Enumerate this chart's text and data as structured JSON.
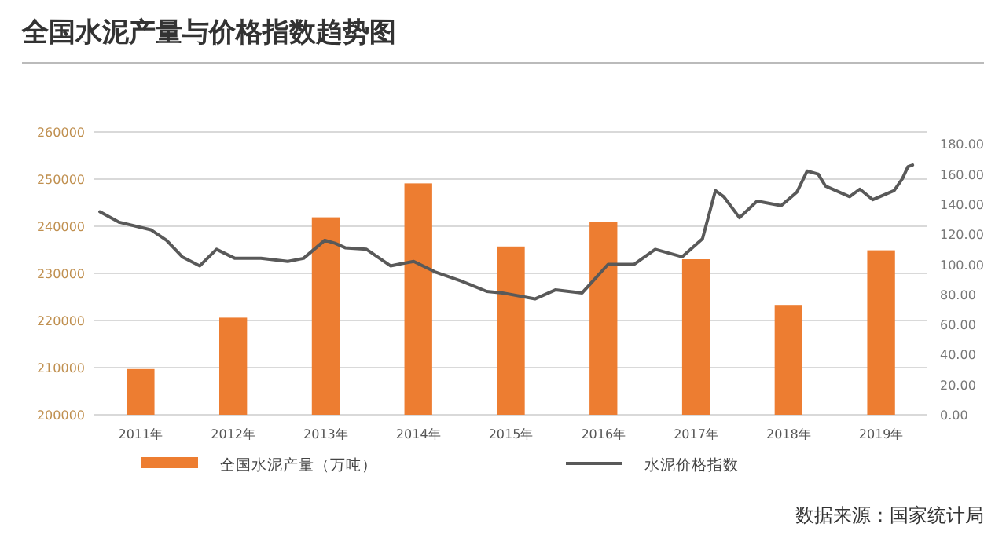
{
  "chart_data": {
    "type": "bar",
    "title": "全国水泥产量与价格指数趋势图",
    "x": [
      2011,
      2012,
      2013,
      2014,
      2015,
      2016,
      2017,
      2018,
      2019
    ],
    "xlim": [
      2010.5,
      2019.5
    ],
    "xticks": [
      {
        "value": 2011,
        "label": "2011年"
      },
      {
        "value": 2012,
        "label": "2012年"
      },
      {
        "value": 2013,
        "label": "2013年"
      },
      {
        "value": 2014,
        "label": "2014年"
      },
      {
        "value": 2015,
        "label": "2015年"
      },
      {
        "value": 2016,
        "label": "2016年"
      },
      {
        "value": 2017,
        "label": "2017年"
      },
      {
        "value": 2018,
        "label": "2018年"
      },
      {
        "value": 2019,
        "label": "2019年"
      }
    ],
    "ylim": [
      200000,
      260000
    ],
    "yticks": [
      200000,
      210000,
      220000,
      230000,
      240000,
      250000,
      260000
    ],
    "y2lim": [
      0,
      188
    ],
    "y2ticks": [
      {
        "value": 0,
        "label": "0.00"
      },
      {
        "value": 20,
        "label": "20.00"
      },
      {
        "value": 40,
        "label": "40.00"
      },
      {
        "value": 60,
        "label": "60.00"
      },
      {
        "value": 80,
        "label": "80.00"
      },
      {
        "value": 100,
        "label": "100.00"
      },
      {
        "value": 120,
        "label": "120.00"
      },
      {
        "value": 140,
        "label": "140.00"
      },
      {
        "value": 160,
        "label": "160.00"
      },
      {
        "value": 180,
        "label": "180.00"
      }
    ],
    "grid": "y",
    "legend": "bottom",
    "series": [
      {
        "name": "全国水泥产量（万吨）",
        "color": "#ed7d31",
        "values": [
          209700,
          220600,
          241900,
          249100,
          235700,
          240900,
          233000,
          223300,
          234900
        ]
      },
      {
        "name": "水泥价格指数",
        "type": "line",
        "axis": "y2",
        "color": "#595959",
        "x": [
          2010.56,
          2010.77,
          2011.11,
          2011.28,
          2011.45,
          2011.64,
          2011.82,
          2012.02,
          2012.3,
          2012.59,
          2012.76,
          2012.99,
          2013.1,
          2013.21,
          2013.44,
          2013.7,
          2013.95,
          2014.18,
          2014.46,
          2014.74,
          2014.91,
          2015.26,
          2015.48,
          2015.77,
          2016.05,
          2016.33,
          2016.56,
          2016.85,
          2017.07,
          2017.21,
          2017.3,
          2017.47,
          2017.66,
          2017.92,
          2018.09,
          2018.2,
          2018.32,
          2018.4,
          2018.66,
          2018.77,
          2018.91,
          2019.14,
          2019.23,
          2019.29,
          2019.34
        ],
        "values": [
          135,
          128,
          123,
          116,
          105,
          99,
          110,
          104,
          104,
          102,
          104,
          116,
          114,
          111,
          110,
          99,
          102,
          95,
          89,
          82,
          81,
          77,
          83,
          81,
          100,
          100,
          110,
          105,
          117,
          149,
          145,
          131,
          142,
          139,
          148,
          162,
          160,
          152,
          145,
          150,
          143,
          149,
          157,
          165,
          166
        ]
      }
    ],
    "annotations": [
      "数据来源：国家统计局"
    ]
  }
}
